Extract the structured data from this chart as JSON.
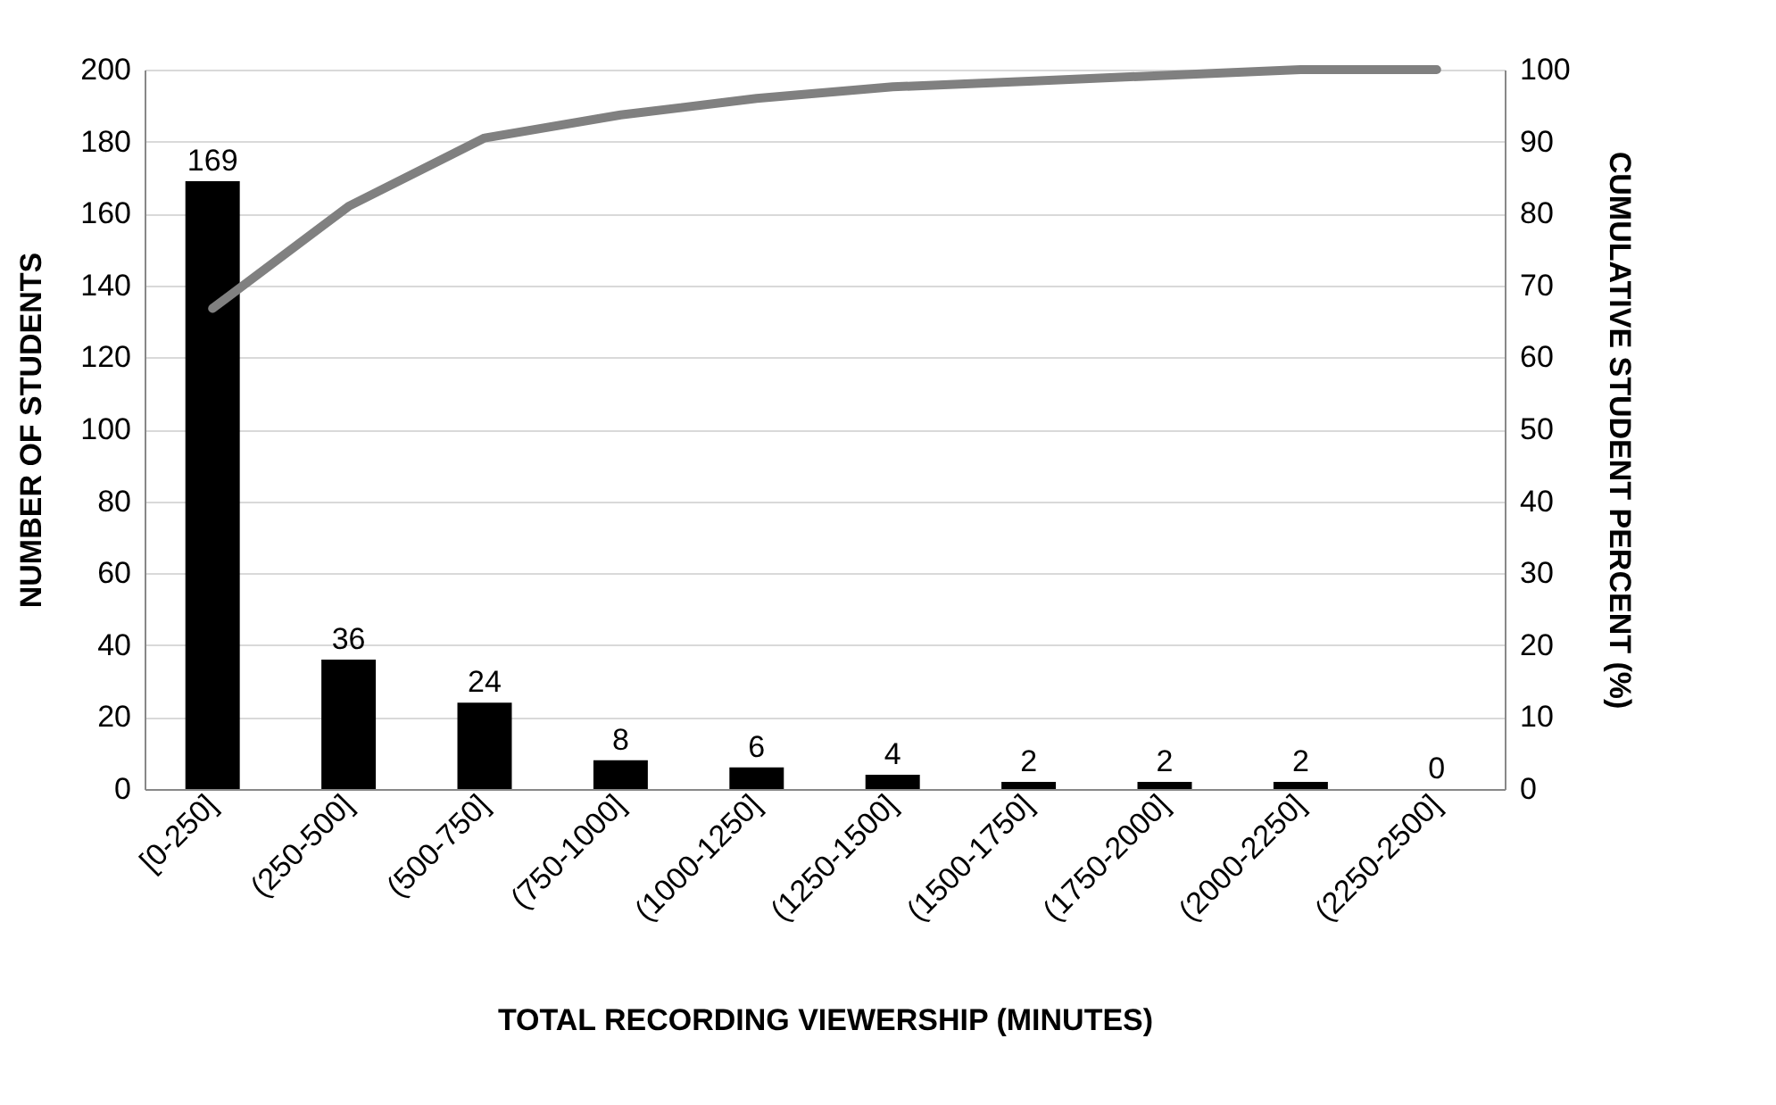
{
  "chart_data": {
    "type": "bar",
    "xlabel": "TOTAL RECORDING VIEWERSHIP (MINUTES)",
    "ylabel": "NUMBER OF STUDENTS",
    "y2label": "CUMULATIVE STUDENT PERCENT (%)",
    "categories": [
      "[0-250]",
      "(250-500]",
      "(500-750]",
      "(750-1000]",
      "(1000-1250]",
      "(1250-1500]",
      "(1500-1750]",
      "(1750-2000]",
      "(2000-2250]",
      "(2250-2500]"
    ],
    "series": [
      {
        "color": "#000000",
        "values": [
          169,
          36,
          24,
          8,
          6,
          4,
          2,
          2,
          2,
          0
        ],
        "value_labels": [
          "169",
          "36",
          "24",
          "8",
          "6",
          "4",
          "2",
          "2",
          "2",
          "0"
        ]
      },
      {
        "type": "line",
        "axis": "y2",
        "color": "#808080",
        "values": [
          66.8,
          81,
          90.5,
          93.7,
          96,
          97.6,
          98.4,
          99.2,
          100,
          100
        ]
      }
    ],
    "ylim": [
      0,
      200
    ],
    "yticks": [
      0,
      20,
      40,
      60,
      80,
      100,
      120,
      140,
      160,
      180,
      200
    ],
    "y2lim": [
      0,
      100
    ],
    "y2ticks": [
      0,
      10,
      20,
      30,
      40,
      50,
      60,
      70,
      80,
      90,
      100
    ],
    "grid": "y"
  }
}
